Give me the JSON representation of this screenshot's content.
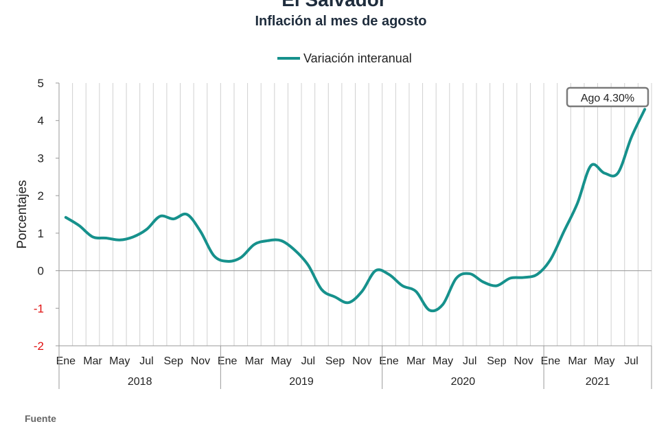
{
  "page_title": "El Salvador",
  "footer_text": "Fuente",
  "chart_data": {
    "type": "line",
    "title": "El Salvador",
    "subtitle": "Inflación al mes de agosto",
    "ylabel": "Porcentajes",
    "xlabel": "",
    "ylim": [
      -2,
      5
    ],
    "yticks": [
      5,
      4,
      3,
      2,
      1,
      0,
      -1,
      -2
    ],
    "negative_tick_color": "#e01010",
    "grid": true,
    "legend_position": "top-center",
    "series": [
      {
        "name": "Variación interanual",
        "color": "#16918c",
        "x": [
          "2018-01",
          "2018-02",
          "2018-03",
          "2018-04",
          "2018-05",
          "2018-06",
          "2018-07",
          "2018-08",
          "2018-09",
          "2018-10",
          "2018-11",
          "2018-12",
          "2019-01",
          "2019-02",
          "2019-03",
          "2019-04",
          "2019-05",
          "2019-06",
          "2019-07",
          "2019-08",
          "2019-09",
          "2019-10",
          "2019-11",
          "2019-12",
          "2020-01",
          "2020-02",
          "2020-03",
          "2020-04",
          "2020-05",
          "2020-06",
          "2020-07",
          "2020-08",
          "2020-09",
          "2020-10",
          "2020-11",
          "2020-12",
          "2021-01",
          "2021-02",
          "2021-03",
          "2021-04",
          "2021-05",
          "2021-06",
          "2021-07",
          "2021-08"
        ],
        "values": [
          1.42,
          1.2,
          0.9,
          0.87,
          0.82,
          0.9,
          1.1,
          1.45,
          1.38,
          1.5,
          1.05,
          0.4,
          0.25,
          0.35,
          0.7,
          0.8,
          0.8,
          0.55,
          0.15,
          -0.5,
          -0.7,
          -0.85,
          -0.55,
          0.0,
          -0.1,
          -0.4,
          -0.55,
          -1.05,
          -0.9,
          -0.2,
          -0.08,
          -0.3,
          -0.4,
          -0.2,
          -0.18,
          -0.1,
          0.3,
          1.05,
          1.8,
          2.8,
          2.6,
          2.6,
          3.55,
          4.3
        ]
      }
    ],
    "month_labels": [
      "Ene",
      "Mar",
      "May",
      "Jul",
      "Sep",
      "Nov",
      "Ene",
      "Mar",
      "May",
      "Jul",
      "Sep",
      "Nov",
      "Ene",
      "Mar",
      "May",
      "Jul",
      "Sep",
      "Nov",
      "Ene",
      "Mar",
      "May",
      "Jul"
    ],
    "years": [
      "2018",
      "2019",
      "2020",
      "2021"
    ],
    "annotation": {
      "text": "Ago 4.30%",
      "x": "2021-08",
      "y": 4.3
    }
  }
}
